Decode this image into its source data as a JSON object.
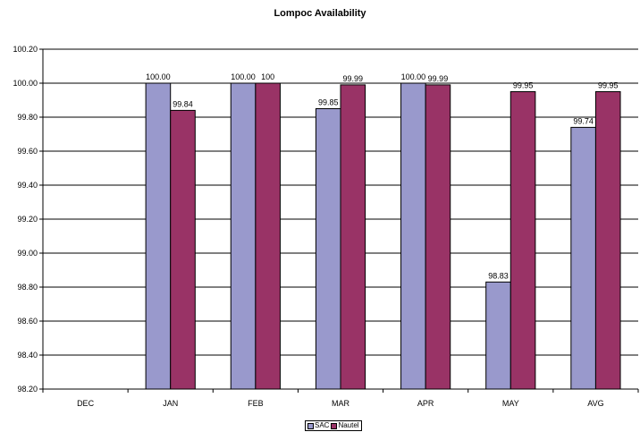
{
  "chart_data": {
    "type": "bar",
    "title": "Lompoc Availability",
    "xlabel": "",
    "ylabel": "",
    "categories": [
      "DEC",
      "JAN",
      "FEB",
      "MAR",
      "APR",
      "MAY",
      "AVG"
    ],
    "y_tick_labels": [
      "98.20",
      "98.40",
      "98.60",
      "98.80",
      "99.00",
      "99.20",
      "99.40",
      "99.60",
      "99.80",
      "100.00",
      "100.20"
    ],
    "ylim": [
      98.2,
      100.2
    ],
    "grid": true,
    "legend_position": "bottom-center",
    "series": [
      {
        "name": "SAC",
        "color": "#9999cc",
        "values": [
          null,
          100.0,
          100.0,
          99.85,
          100.0,
          98.83,
          99.74
        ],
        "labels": [
          "",
          "100.00",
          "100.00",
          "99.85",
          "100.00",
          "98.83",
          "99.74"
        ]
      },
      {
        "name": "Nautel",
        "color": "#993366",
        "values": [
          null,
          99.84,
          100.0,
          99.99,
          99.99,
          99.95,
          99.95
        ],
        "labels": [
          "",
          "99.84",
          "100",
          "99.99",
          "99.99",
          "99.95",
          "99.95"
        ]
      }
    ]
  }
}
